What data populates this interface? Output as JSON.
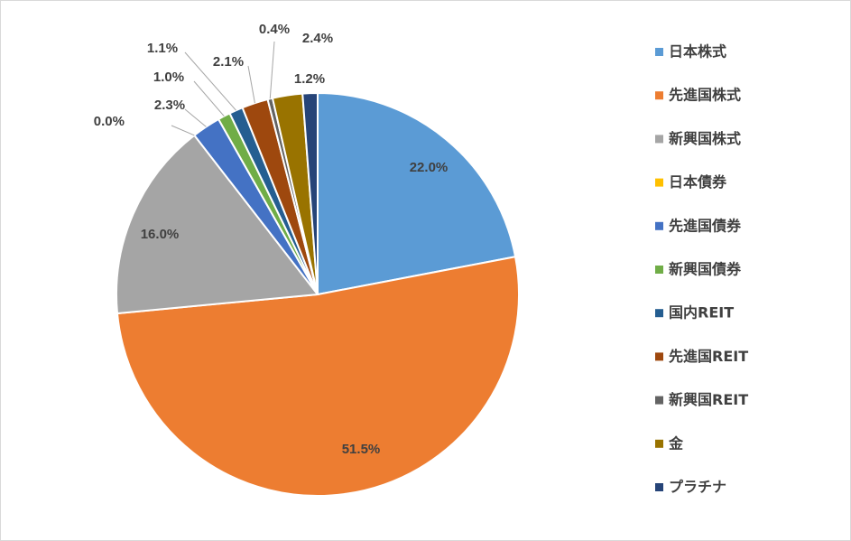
{
  "chart_data": {
    "type": "pie",
    "title": "",
    "legend_position": "right",
    "slices": [
      {
        "name": "日本株式",
        "value": 22.0,
        "label": "22.0%",
        "color": "#5B9BD5"
      },
      {
        "name": "先進国株式",
        "value": 51.5,
        "label": "51.5%",
        "color": "#ED7D31"
      },
      {
        "name": "新興国株式",
        "value": 16.0,
        "label": "16.0%",
        "color": "#A5A5A5"
      },
      {
        "name": "日本債券",
        "value": 0.0,
        "label": "0.0%",
        "color": "#FFC000"
      },
      {
        "name": "先進国債券",
        "value": 2.3,
        "label": "2.3%",
        "color": "#4472C4"
      },
      {
        "name": "新興国債券",
        "value": 1.0,
        "label": "1.0%",
        "color": "#70AD47"
      },
      {
        "name": "国内REIT",
        "value": 1.1,
        "label": "1.1%",
        "color": "#255E91"
      },
      {
        "name": "先進国REIT",
        "value": 2.1,
        "label": "2.1%",
        "color": "#9E480E"
      },
      {
        "name": "新興国REIT",
        "value": 0.4,
        "label": "0.4%",
        "color": "#636363"
      },
      {
        "name": "金",
        "value": 2.4,
        "label": "2.4%",
        "color": "#997300"
      },
      {
        "name": "プラチナ",
        "value": 1.2,
        "label": "1.2%",
        "color": "#264478"
      }
    ]
  }
}
